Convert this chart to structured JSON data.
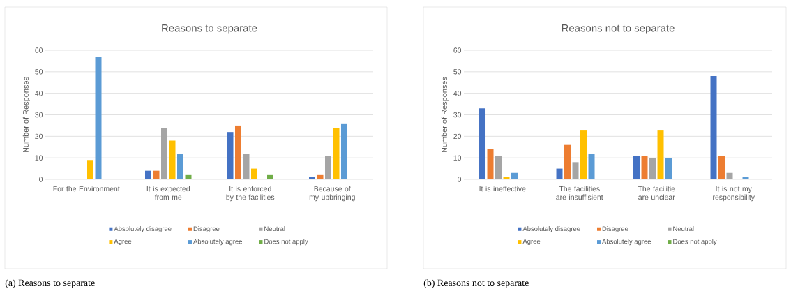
{
  "chart_data": [
    {
      "type": "bar",
      "title": "Reasons to separate",
      "ylabel": "Number of Responses",
      "categories": [
        "For the Environment",
        "It is expected from me",
        "It is enforced by the facilities",
        "Because of my upbringing"
      ],
      "series": [
        {
          "name": "Absolutely disagree",
          "color": "#4472c4",
          "values": [
            0,
            4,
            22,
            1
          ]
        },
        {
          "name": "Disagree",
          "color": "#ed7d31",
          "values": [
            0,
            4,
            25,
            2
          ]
        },
        {
          "name": "Neutral",
          "color": "#a5a5a5",
          "values": [
            0,
            24,
            12,
            11
          ]
        },
        {
          "name": "Agree",
          "color": "#ffc000",
          "values": [
            9,
            18,
            5,
            24
          ]
        },
        {
          "name": "Absolutely agree",
          "color": "#5b9bd5",
          "values": [
            57,
            12,
            0,
            26
          ]
        },
        {
          "name": "Does not apply",
          "color": "#70ad47",
          "values": [
            0,
            2,
            2,
            0
          ]
        }
      ],
      "ylim": [
        0,
        60
      ],
      "yticks": [
        0,
        10,
        20,
        30,
        40,
        50,
        60
      ],
      "grid": "y",
      "legend": "bottom",
      "annotations": [
        "(a) Reasons to separate"
      ]
    },
    {
      "type": "bar",
      "title": "Reasons not to separate",
      "ylabel": "Number of Responses",
      "categories": [
        "It is ineffective",
        "The facilities are insuffisient",
        "The facilitie are unclear",
        "It is not my responsibility"
      ],
      "series": [
        {
          "name": "Absolutely disagree",
          "color": "#4472c4",
          "values": [
            33,
            5,
            11,
            48
          ]
        },
        {
          "name": "Disagree",
          "color": "#ed7d31",
          "values": [
            14,
            16,
            11,
            11
          ]
        },
        {
          "name": "Neutral",
          "color": "#a5a5a5",
          "values": [
            11,
            8,
            10,
            3
          ]
        },
        {
          "name": "Agree",
          "color": "#ffc000",
          "values": [
            1,
            23,
            23,
            0
          ]
        },
        {
          "name": "Absolutely agree",
          "color": "#5b9bd5",
          "values": [
            3,
            12,
            10,
            1
          ]
        },
        {
          "name": "Does not apply",
          "color": "#70ad47",
          "values": [
            0,
            0,
            0,
            0
          ]
        }
      ],
      "ylim": [
        0,
        60
      ],
      "yticks": [
        0,
        10,
        20,
        30,
        40,
        50,
        60
      ],
      "grid": "y",
      "legend": "bottom",
      "annotations": [
        "(b) Reasons not to separate"
      ]
    }
  ]
}
